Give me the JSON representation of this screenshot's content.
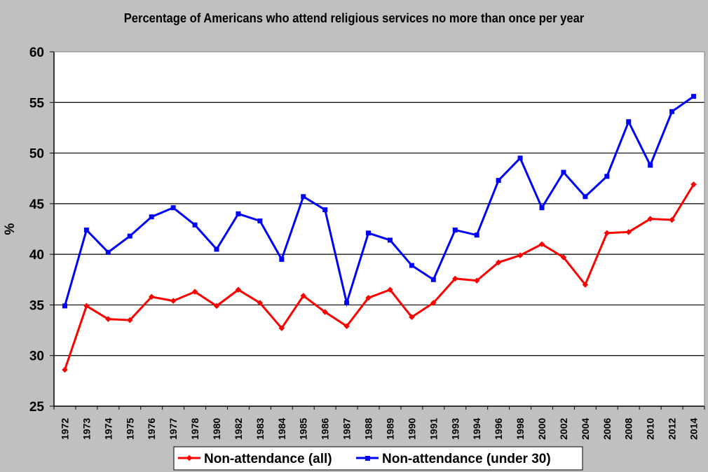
{
  "chart_data": {
    "type": "line",
    "title": "Percentage of Americans who attend religious services no more than once per year",
    "xlabel": "",
    "ylabel": "%",
    "ylim": [
      25,
      60
    ],
    "yticks": [
      25,
      30,
      35,
      40,
      45,
      50,
      55,
      60
    ],
    "grid": true,
    "legend_position": "bottom",
    "categories": [
      "1972",
      "1973",
      "1974",
      "1975",
      "1976",
      "1977",
      "1978",
      "1980",
      "1982",
      "1983",
      "1984",
      "1985",
      "1986",
      "1987",
      "1988",
      "1989",
      "1990",
      "1991",
      "1993",
      "1994",
      "1996",
      "1998",
      "2000",
      "2002",
      "2004",
      "2006",
      "2008",
      "2010",
      "2012",
      "2014"
    ],
    "series": [
      {
        "name": "Non-attendance (all)",
        "color": "#ff0000",
        "marker": "diamond",
        "values": [
          28.6,
          34.9,
          33.6,
          33.5,
          35.8,
          35.4,
          36.3,
          34.9,
          36.5,
          35.2,
          32.7,
          35.9,
          34.3,
          32.9,
          35.7,
          36.5,
          33.8,
          35.2,
          37.6,
          37.4,
          39.2,
          39.9,
          41.0,
          39.7,
          37.0,
          42.1,
          42.2,
          43.5,
          43.4,
          46.9
        ]
      },
      {
        "name": "Non-attendance (under 30)",
        "color": "#0000ff",
        "marker": "square",
        "values": [
          34.9,
          42.4,
          40.2,
          41.8,
          43.7,
          44.6,
          42.9,
          40.5,
          44.0,
          43.3,
          39.5,
          45.7,
          44.4,
          35.2,
          42.1,
          41.4,
          38.9,
          37.5,
          42.4,
          41.9,
          47.3,
          49.5,
          44.6,
          48.1,
          45.7,
          47.7,
          53.1,
          48.8,
          54.1,
          55.6
        ]
      }
    ]
  }
}
